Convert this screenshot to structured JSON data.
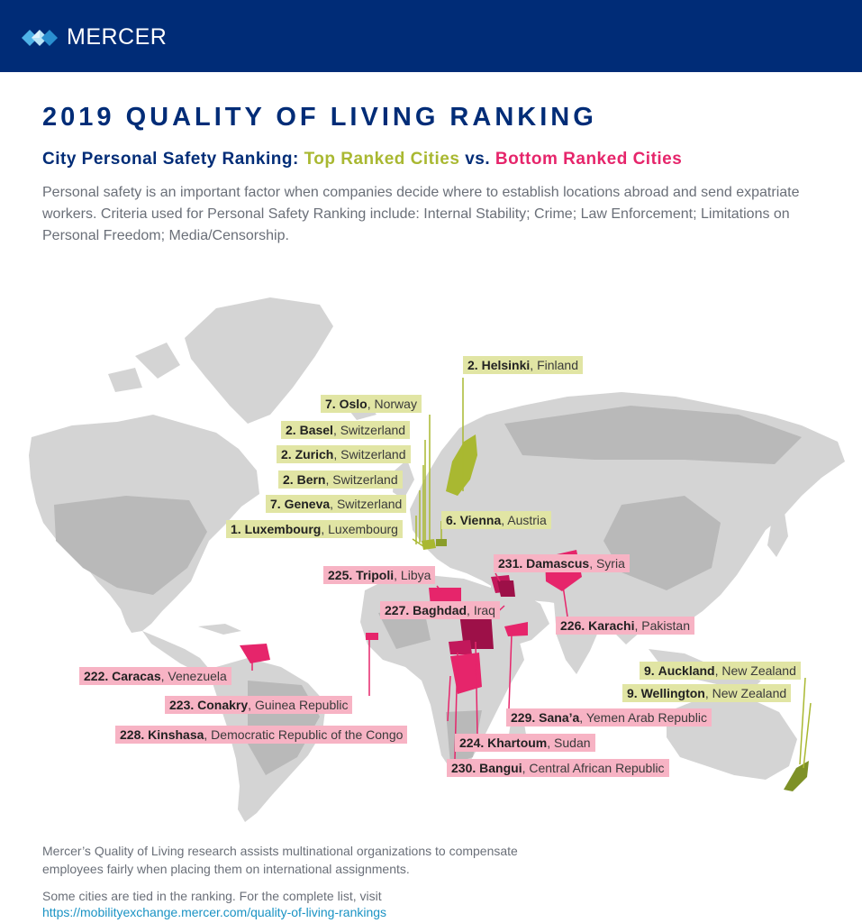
{
  "brand": {
    "name": "MERCER"
  },
  "title": "2019 QUALITY OF LIVING RANKING",
  "subtitle": {
    "lead": "City Personal Safety Ranking: ",
    "top": "Top Ranked Cities",
    "mid": " vs. ",
    "bottom": "Bottom Ranked Cities"
  },
  "description": "Personal safety is an important factor when companies decide where to establish locations abroad and send expatriate workers. Criteria used for Personal Safety Ranking include: Internal Stability; Crime; Law Enforcement; Limitations on Personal Freedom; Media/Censorship.",
  "colors": {
    "navy": "#002c77",
    "top_green": "#a9b831",
    "bottom_pink": "#e6256b",
    "label_green_bg": "#e1e5a4",
    "label_pink_bg": "#f7b3c4",
    "land_grey": "#d4d4d4"
  },
  "top_cities": [
    {
      "rank": "2.",
      "city": "Helsinki",
      "country": "Finland"
    },
    {
      "rank": "7.",
      "city": "Oslo",
      "country": "Norway"
    },
    {
      "rank": "2.",
      "city": "Basel",
      "country": "Switzerland"
    },
    {
      "rank": "2.",
      "city": "Zurich",
      "country": "Switzerland"
    },
    {
      "rank": "2.",
      "city": "Bern",
      "country": "Switzerland"
    },
    {
      "rank": "7.",
      "city": "Geneva",
      "country": "Switzerland"
    },
    {
      "rank": "1.",
      "city": "Luxembourg",
      "country": "Luxembourg"
    },
    {
      "rank": "6.",
      "city": "Vienna",
      "country": "Austria"
    },
    {
      "rank": "9.",
      "city": "Auckland",
      "country": "New Zealand"
    },
    {
      "rank": "9.",
      "city": "Wellington",
      "country": "New Zealand"
    }
  ],
  "bottom_cities": [
    {
      "rank": "231.",
      "city": "Damascus",
      "country": "Syria"
    },
    {
      "rank": "225.",
      "city": "Tripoli",
      "country": "Libya"
    },
    {
      "rank": "227.",
      "city": "Baghdad",
      "country": "Iraq"
    },
    {
      "rank": "226.",
      "city": "Karachi",
      "country": "Pakistan"
    },
    {
      "rank": "222.",
      "city": "Caracas",
      "country": "Venezuela"
    },
    {
      "rank": "223.",
      "city": "Conakry",
      "country": "Guinea Republic"
    },
    {
      "rank": "228.",
      "city": "Kinshasa",
      "country": "Democratic Republic of the Congo"
    },
    {
      "rank": "229.",
      "city": "Sana’a",
      "country": "Yemen Arab Republic"
    },
    {
      "rank": "224.",
      "city": "Khartoum",
      "country": "Sudan"
    },
    {
      "rank": "230.",
      "city": "Bangui",
      "country": "Central African Republic"
    }
  ],
  "footer": {
    "research": "Mercer’s Quality of Living research assists multinational organizations to compensate employees fairly when placing them on international assignments.",
    "tied_note": "Some cities are tied in the ranking. For the complete list, visit",
    "link": "https://mobilityexchange.mercer.com/quality-of-living-rankings"
  }
}
